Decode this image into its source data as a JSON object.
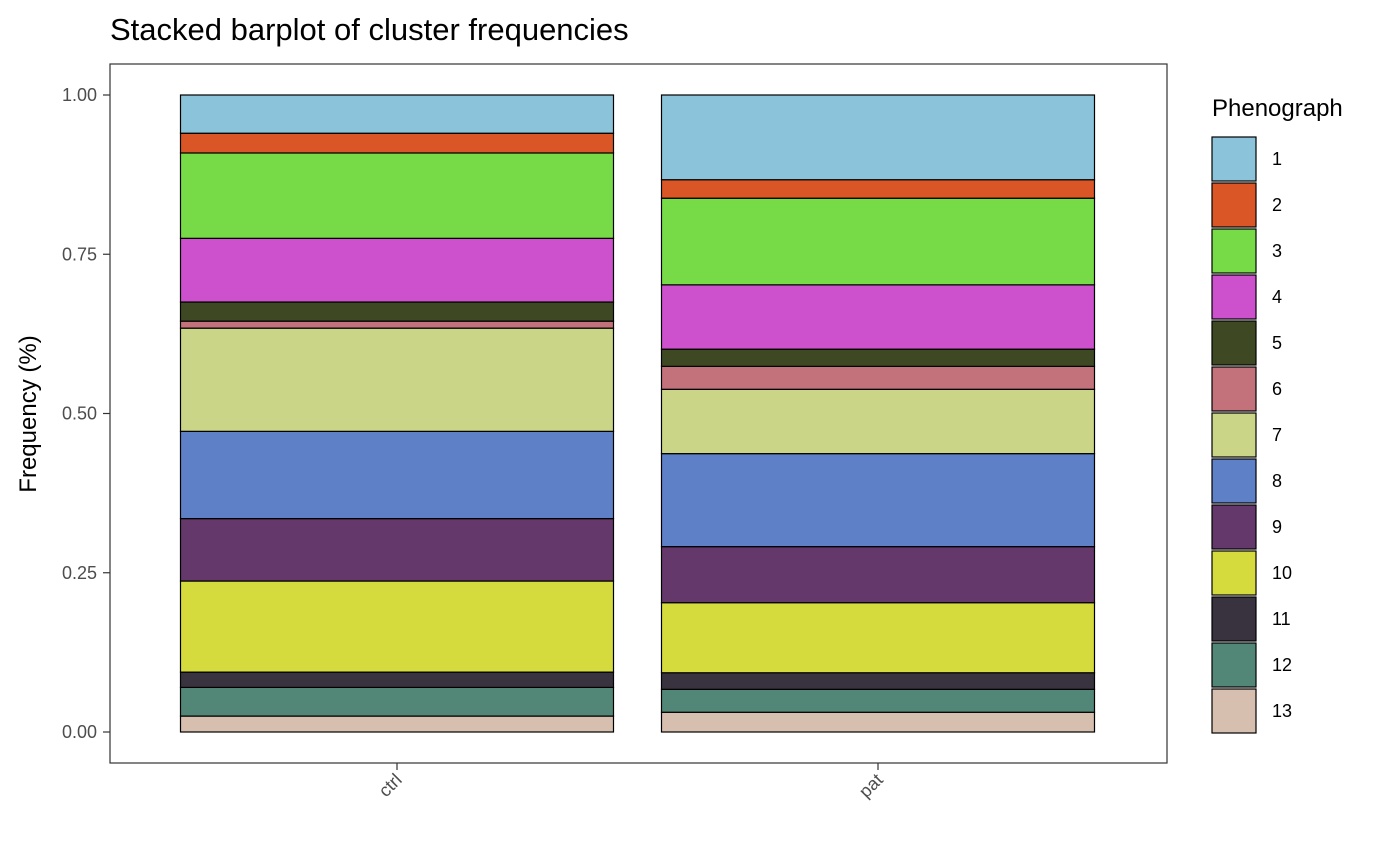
{
  "colors": {
    "1": "#8AC3DA",
    "2": "#DB5626",
    "3": "#76DB47",
    "4": "#CD51CC",
    "5": "#3E4923",
    "6": "#C3717A",
    "7": "#CBD588",
    "8": "#5E80C7",
    "9": "#65386C",
    "10": "#D5DB3C",
    "11": "#39333F",
    "12": "#528777",
    "13": "#D6BFAE"
  },
  "chart_data": {
    "type": "bar",
    "stacked": true,
    "title": "Stacked barplot of cluster frequencies",
    "xlabel": "",
    "ylabel": "Frequency (%)",
    "ylim": [
      0,
      1
    ],
    "yticks": [
      "0.00",
      "0.25",
      "0.50",
      "0.75",
      "1.00"
    ],
    "categories": [
      "ctrl",
      "pat"
    ],
    "legend": {
      "title": "Phenograph",
      "position": "right"
    },
    "grid": false,
    "series": [
      {
        "name": "1",
        "values": [
          0.06,
          0.133
        ]
      },
      {
        "name": "2",
        "values": [
          0.031,
          0.029
        ]
      },
      {
        "name": "3",
        "values": [
          0.134,
          0.136
        ]
      },
      {
        "name": "4",
        "values": [
          0.1,
          0.101
        ]
      },
      {
        "name": "5",
        "values": [
          0.03,
          0.027
        ]
      },
      {
        "name": "6",
        "values": [
          0.011,
          0.036
        ]
      },
      {
        "name": "7",
        "values": [
          0.162,
          0.101
        ]
      },
      {
        "name": "8",
        "values": [
          0.137,
          0.146
        ]
      },
      {
        "name": "9",
        "values": [
          0.098,
          0.088
        ]
      },
      {
        "name": "10",
        "values": [
          0.143,
          0.11
        ]
      },
      {
        "name": "11",
        "values": [
          0.024,
          0.026
        ]
      },
      {
        "name": "12",
        "values": [
          0.045,
          0.036
        ]
      },
      {
        "name": "13",
        "values": [
          0.025,
          0.031
        ]
      }
    ]
  }
}
